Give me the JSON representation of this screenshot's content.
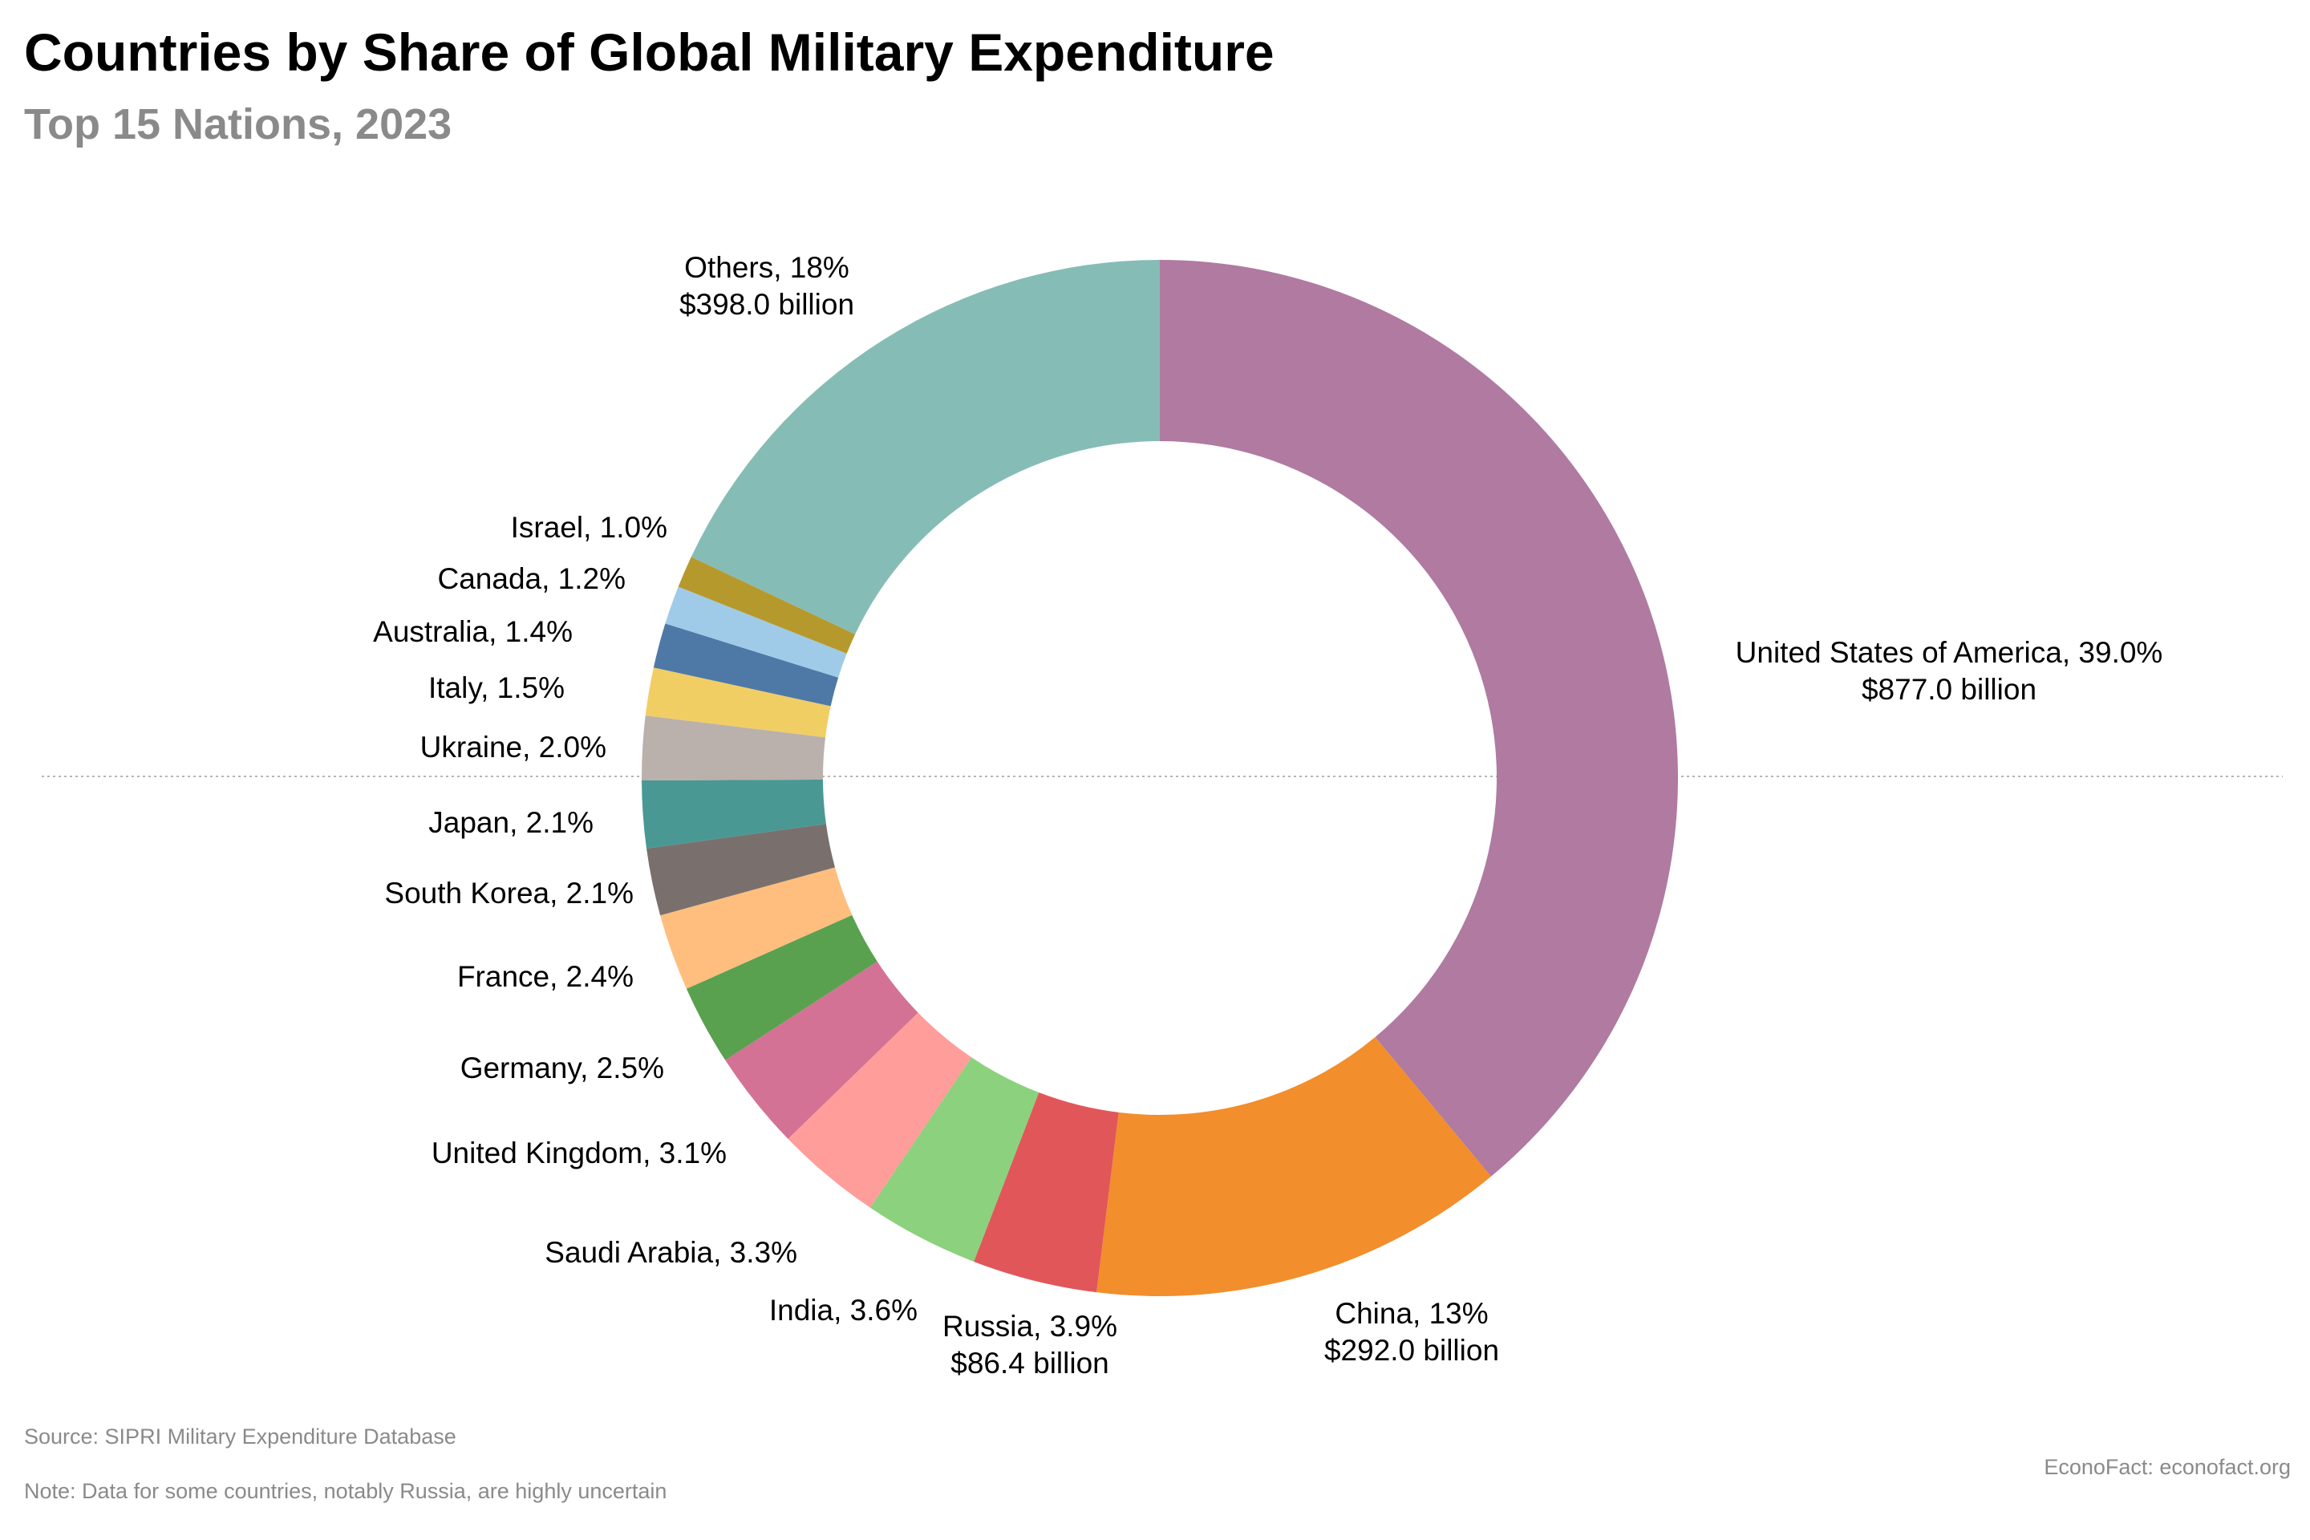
{
  "chart_data": {
    "type": "pie",
    "title": "Countries by Share of Global Military Expenditure",
    "subtitle": "Top 15 Nations, 2023",
    "source": "Source: SIPRI Military Expenditure Database",
    "note": "Note: Data for some countries, notably Russia, are highly uncertain",
    "attribution": "EconoFact: econofact.org",
    "slices": [
      {
        "name": "United States of America",
        "percent": 39.0,
        "color": "#b07aa1",
        "label": "United States of America, 39.0%",
        "value_label": "$877.0 billion"
      },
      {
        "name": "China",
        "percent": 13.0,
        "color": "#f28e2b",
        "label": "China, 13%",
        "value_label": "$292.0 billion"
      },
      {
        "name": "Russia",
        "percent": 3.9,
        "color": "#e15759",
        "label": "Russia, 3.9%",
        "value_label": "$86.4 billion"
      },
      {
        "name": "India",
        "percent": 3.6,
        "color": "#8cd17d",
        "label": "India, 3.6%"
      },
      {
        "name": "Saudi Arabia",
        "percent": 3.3,
        "color": "#ff9d9a",
        "label": "Saudi Arabia, 3.3%"
      },
      {
        "name": "United Kingdom",
        "percent": 3.1,
        "color": "#d37295",
        "label": "United Kingdom, 3.1%"
      },
      {
        "name": "Germany",
        "percent": 2.5,
        "color": "#59a14f",
        "label": "Germany, 2.5%"
      },
      {
        "name": "France",
        "percent": 2.4,
        "color": "#ffbe7d",
        "label": "France, 2.4%"
      },
      {
        "name": "South Korea",
        "percent": 2.1,
        "color": "#79706e",
        "label": "South Korea, 2.1%"
      },
      {
        "name": "Japan",
        "percent": 2.1,
        "color": "#499894",
        "label": "Japan, 2.1%"
      },
      {
        "name": "Ukraine",
        "percent": 2.0,
        "color": "#bab0ac",
        "label": "Ukraine, 2.0%"
      },
      {
        "name": "Italy",
        "percent": 1.5,
        "color": "#f1ce63",
        "label": "Italy, 1.5%"
      },
      {
        "name": "Australia",
        "percent": 1.4,
        "color": "#4e79a7",
        "label": "Australia, 1.4%"
      },
      {
        "name": "Canada",
        "percent": 1.2,
        "color": "#a0cbe8",
        "label": "Canada, 1.2%"
      },
      {
        "name": "Israel",
        "percent": 1.0,
        "color": "#b6992d",
        "label": "Israel, 1.0%"
      },
      {
        "name": "Others",
        "percent": 18.0,
        "color": "#86bcb6",
        "label": "Others, 18%",
        "value_label": "$398.0 billion"
      }
    ]
  }
}
